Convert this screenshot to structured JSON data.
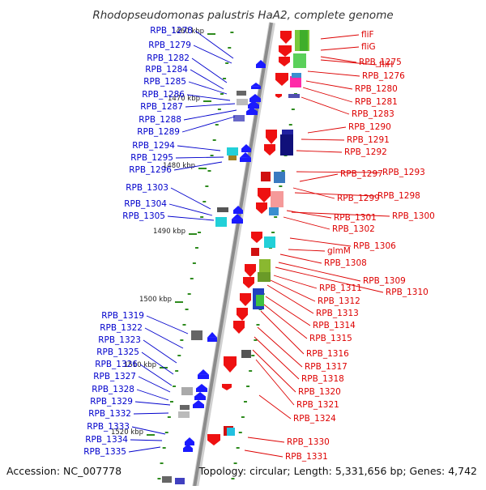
{
  "title": "Rhodopseudomonas palustris HaA2, complete genome",
  "footer": {
    "accession": "Accession: NC_007778",
    "summary": "Topology: circular; Length: 5,331,656 bp; Genes: 4,742"
  },
  "colors": {
    "backbone": "#8c8c8c",
    "left_label": "#0000cc",
    "right_label": "#dd0000",
    "tick_mark": "#2e8b1e",
    "gene_blue": "#1a1aff",
    "gene_red": "#ee1111"
  },
  "scale_labels": [
    "1460 kbp",
    "1470 kbp",
    "1480 kbp",
    "1490 kbp",
    "1500 kbp",
    "1510 kbp",
    "1520 kbp"
  ],
  "left_genes": [
    "RPB_1278",
    "RPB_1279",
    "RPB_1282",
    "RPB_1284",
    "RPB_1285",
    "RPB_1286",
    "RPB_1287",
    "RPB_1288",
    "RPB_1289",
    "RPB_1294",
    "RPB_1295",
    "RPB_1296",
    "RPB_1303",
    "RPB_1304",
    "RPB_1305",
    "RPB_1319",
    "RPB_1322",
    "RPB_1323",
    "RPB_1325",
    "RPB_1326",
    "RPB_1327",
    "RPB_1328",
    "RPB_1329",
    "RPB_1332",
    "RPB_1333",
    "RPB_1334",
    "RPB_1335"
  ],
  "right_genes": [
    "fliF",
    "fliG",
    "RPB_1275",
    "fliH",
    "RPB_1276",
    "RPB_1280",
    "RPB_1281",
    "RPB_1283",
    "RPB_1290",
    "RPB_1291",
    "RPB_1292",
    "RPB_1297",
    "RPB_1293",
    "RPB_1298",
    "RPB_1299",
    "RPB_1300",
    "RPB_1301",
    "RPB_1302",
    "RPB_1306",
    "glmM",
    "RPB_1308",
    "RPB_1309",
    "RPB_1310",
    "RPB_1311",
    "RPB_1312",
    "RPB_1313",
    "RPB_1314",
    "RPB_1315",
    "RPB_1316",
    "RPB_1317",
    "RPB_1318",
    "RPB_1320",
    "RPB_1321",
    "RPB_1324",
    "RPB_1330",
    "RPB_1331"
  ]
}
